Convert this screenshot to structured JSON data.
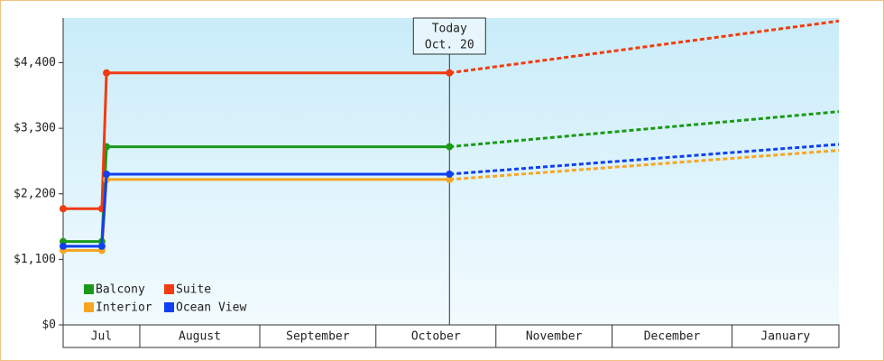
{
  "chart_data": {
    "type": "line",
    "x": [
      11.2,
      21.2,
      22.4,
      111,
      211.6
    ],
    "xlim": [
      11.2,
      211.6
    ],
    "xticks": [
      {
        "value": 0,
        "label": "Jul"
      },
      {
        "value": 31,
        "label": "August"
      },
      {
        "value": 62,
        "label": "September"
      },
      {
        "value": 92,
        "label": "October"
      },
      {
        "value": 123,
        "label": "November"
      },
      {
        "value": 153,
        "label": "December"
      },
      {
        "value": 184,
        "label": "January"
      }
    ],
    "ylim": [
      0,
      5150
    ],
    "yticks": [
      {
        "value": 0,
        "label": "$0"
      },
      {
        "value": 1100,
        "label": "$1,100"
      },
      {
        "value": 2200,
        "label": "$2,200"
      },
      {
        "value": 3300,
        "label": "$3,300"
      },
      {
        "value": 4400,
        "label": "$4,400"
      }
    ],
    "today": {
      "x": 111,
      "label": [
        "Today",
        "Oct. 20"
      ]
    },
    "legend": "bottom-left",
    "series": [
      {
        "name": "Balcony",
        "color": "#1a9a1a",
        "values": [
          1400,
          1400,
          2990,
          2990,
          3580
        ]
      },
      {
        "name": "Suite",
        "color": "#f03c10",
        "values": [
          1950,
          1950,
          4230,
          4230,
          5100
        ]
      },
      {
        "name": "Interior",
        "color": "#f5a623",
        "values": [
          1250,
          1250,
          2440,
          2440,
          2930
        ]
      },
      {
        "name": "Ocean View",
        "color": "#1040f0",
        "values": [
          1320,
          1320,
          2530,
          2530,
          3030
        ]
      }
    ]
  }
}
